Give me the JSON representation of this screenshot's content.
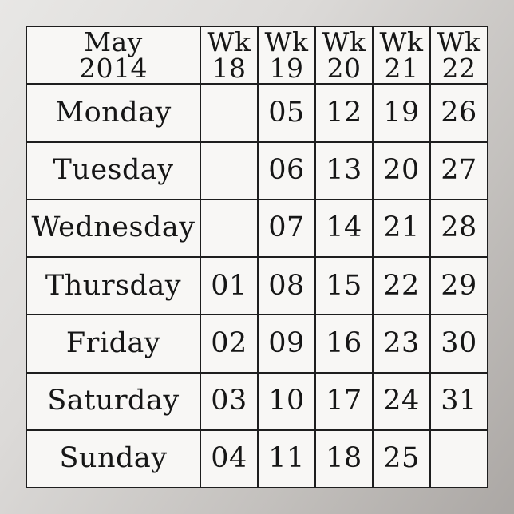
{
  "calendar": {
    "month": "May",
    "year": "2014",
    "week_label": "Wk",
    "weeks": [
      "18",
      "19",
      "20",
      "21",
      "22"
    ],
    "rows": [
      {
        "day": "Monday",
        "cells": [
          "",
          "05",
          "12",
          "19",
          "26"
        ]
      },
      {
        "day": "Tuesday",
        "cells": [
          "",
          "06",
          "13",
          "20",
          "27"
        ]
      },
      {
        "day": "Wednesday",
        "cells": [
          "",
          "07",
          "14",
          "21",
          "28"
        ]
      },
      {
        "day": "Thursday",
        "cells": [
          "01",
          "08",
          "15",
          "22",
          "29"
        ]
      },
      {
        "day": "Friday",
        "cells": [
          "02",
          "09",
          "16",
          "23",
          "30"
        ]
      },
      {
        "day": "Saturday",
        "cells": [
          "03",
          "10",
          "17",
          "24",
          "31"
        ]
      },
      {
        "day": "Sunday",
        "cells": [
          "04",
          "11",
          "18",
          "25",
          ""
        ]
      }
    ],
    "colors": {
      "grid_line": "#1e1e1e",
      "cell_background": "#f8f7f5",
      "text": "#161616",
      "poster_background_light": "#e8e7e5",
      "poster_background_dark": "#aba7a4"
    }
  }
}
